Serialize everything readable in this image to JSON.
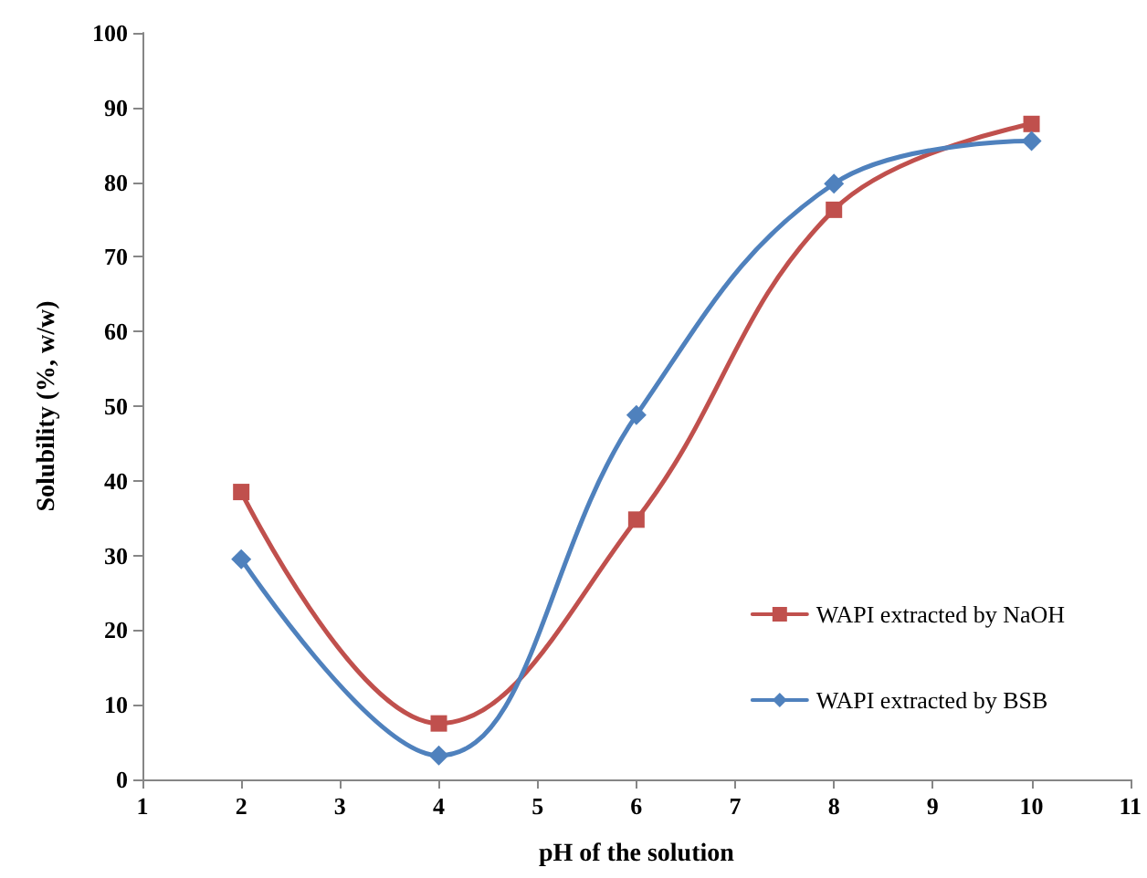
{
  "chart_data": {
    "type": "line",
    "xlabel": "pH of the solution",
    "ylabel": "Solubility (%, w/w)",
    "x": [
      2,
      4,
      6,
      8,
      10
    ],
    "series": [
      {
        "name": "WAPI extracted by NaOH",
        "color": "#c0504d",
        "marker": "square",
        "values": [
          38.5,
          7.5,
          34.8,
          76.3,
          87.8
        ]
      },
      {
        "name": "WAPI extracted by BSB",
        "color": "#4f81bd",
        "marker": "diamond",
        "values": [
          29.5,
          3.2,
          48.8,
          79.8,
          85.5
        ]
      }
    ],
    "xlim": [
      1,
      11
    ],
    "xticks": [
      1,
      2,
      3,
      4,
      5,
      6,
      7,
      8,
      9,
      10,
      11
    ],
    "ylim": [
      0,
      100
    ],
    "yticks": [
      0,
      10,
      20,
      30,
      40,
      50,
      60,
      70,
      80,
      90,
      100
    ],
    "grid": false,
    "legend": "right",
    "line_style": "solid"
  }
}
